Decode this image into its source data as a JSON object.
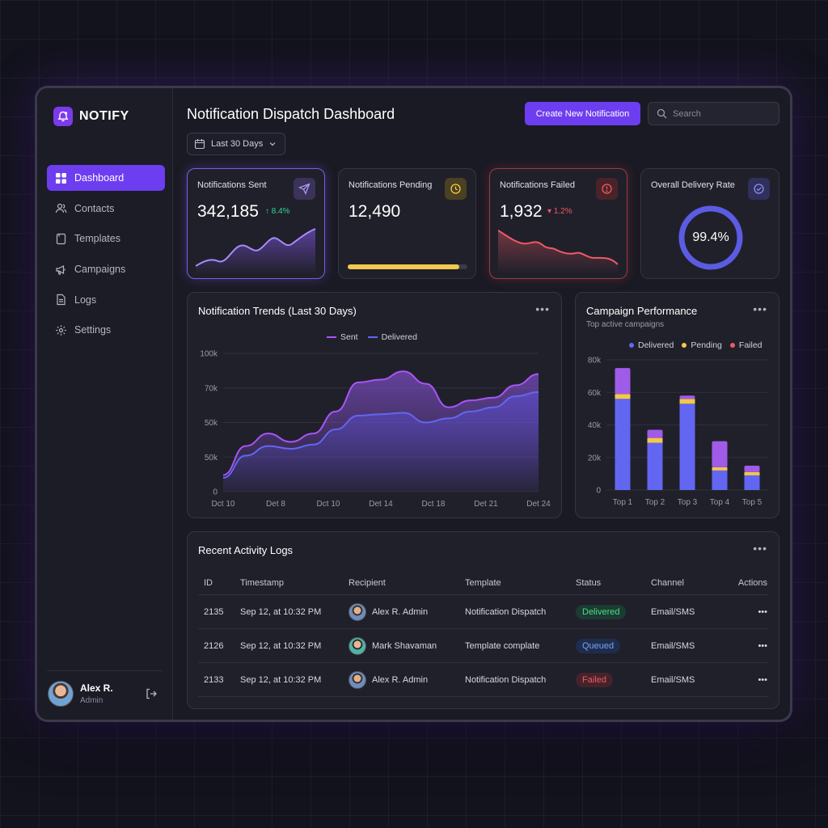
{
  "brand": {
    "name": "NOTIFY"
  },
  "nav": [
    {
      "label": "Dashboard",
      "icon": "grid-icon"
    },
    {
      "label": "Contacts",
      "icon": "users-icon"
    },
    {
      "label": "Templates",
      "icon": "file-icon"
    },
    {
      "label": "Campaigns",
      "icon": "megaphone-icon"
    },
    {
      "label": "Logs",
      "icon": "document-icon"
    },
    {
      "label": "Settings",
      "icon": "gear-icon"
    }
  ],
  "user": {
    "name": "Alex R.",
    "role": "Admin"
  },
  "header": {
    "title": "Notification Dispatch Dashboard",
    "date_range": "Last 30 Days",
    "create_button": "Create New Notification",
    "search_placeholder": "Search"
  },
  "kpis": {
    "sent": {
      "label": "Notifications Sent",
      "value": "342,185",
      "trend": "8.4%",
      "trend_dir": "up"
    },
    "pending": {
      "label": "Notifications Pending",
      "value": "12,490",
      "progress": 0.93
    },
    "failed": {
      "label": "Notifications Failed",
      "value": "1,932",
      "trend": "1.2%",
      "trend_dir": "down"
    },
    "delivery": {
      "label": "Overall Delivery Rate",
      "value": "99.4%",
      "rate": 0.994
    }
  },
  "colors": {
    "accent": "#6d3df0",
    "sent": "#a855f7",
    "delivered": "#6366f1",
    "pending": "#f2c94c",
    "failed": "#ef5a63",
    "trend_up": "#34d399"
  },
  "trends": {
    "title": "Notification Trends (Last 30 Days)",
    "legend": [
      "Sent",
      "Delivered"
    ]
  },
  "campaign": {
    "title": "Campaign Performance",
    "subtitle": "Top active campaigns",
    "legend": [
      "Delivered",
      "Pending",
      "Failed"
    ]
  },
  "chart_data": [
    {
      "type": "area",
      "title": "Notification Trends (Last 30 Days)",
      "x_ticks": [
        "Dct 10",
        "Det 8",
        "Dct 10",
        "Det 14",
        "Dct 18",
        "Det 21",
        "Det 24"
      ],
      "y_ticks": [
        "0",
        "50k",
        "50k",
        "70k",
        "100k"
      ],
      "ylim": [
        0,
        100
      ],
      "series": [
        {
          "name": "Sent",
          "values": [
            12,
            33,
            42,
            36,
            42,
            58,
            79,
            81,
            87,
            78,
            61,
            66,
            68,
            77,
            85
          ]
        },
        {
          "name": "Delivered",
          "values": [
            10,
            26,
            33,
            31,
            34,
            45,
            55,
            56,
            57,
            50,
            53,
            58,
            61,
            69,
            72
          ]
        }
      ]
    },
    {
      "type": "bar",
      "title": "Campaign Performance",
      "categories": [
        "Top 1",
        "Top 2",
        "Top 3",
        "Top 4",
        "Top 5"
      ],
      "y_ticks": [
        "0",
        "20k",
        "40k",
        "60k",
        "80k"
      ],
      "ylim": [
        0,
        80
      ],
      "series": [
        {
          "name": "Delivered",
          "values": [
            56,
            29,
            53,
            12,
            9
          ]
        },
        {
          "name": "Pending",
          "values": [
            3,
            3,
            3,
            2,
            2
          ]
        },
        {
          "name": "Failed",
          "values": [
            16,
            5,
            2,
            16,
            4
          ]
        }
      ]
    }
  ],
  "logs": {
    "title": "Recent Activity Logs",
    "columns": [
      "ID",
      "Timestamp",
      "Recipient",
      "Template",
      "Status",
      "Channel",
      "Actions"
    ],
    "rows": [
      {
        "id": "2135",
        "timestamp": "Sep 12, at 10:32 PM",
        "recipient": "Alex R. Admin",
        "template": "Notification Dispatch",
        "status": "Delivered",
        "channel": "Email/SMS"
      },
      {
        "id": "2126",
        "timestamp": "Sep 12, at 10:32 PM",
        "recipient": "Mark Shavaman",
        "template": "Template complate",
        "status": "Queued",
        "channel": "Email/SMS"
      },
      {
        "id": "2133",
        "timestamp": "Sep 12, at 10:32 PM",
        "recipient": "Alex R. Admin",
        "template": "Notification Dispatch",
        "status": "Failed",
        "channel": "Email/SMS"
      }
    ]
  }
}
